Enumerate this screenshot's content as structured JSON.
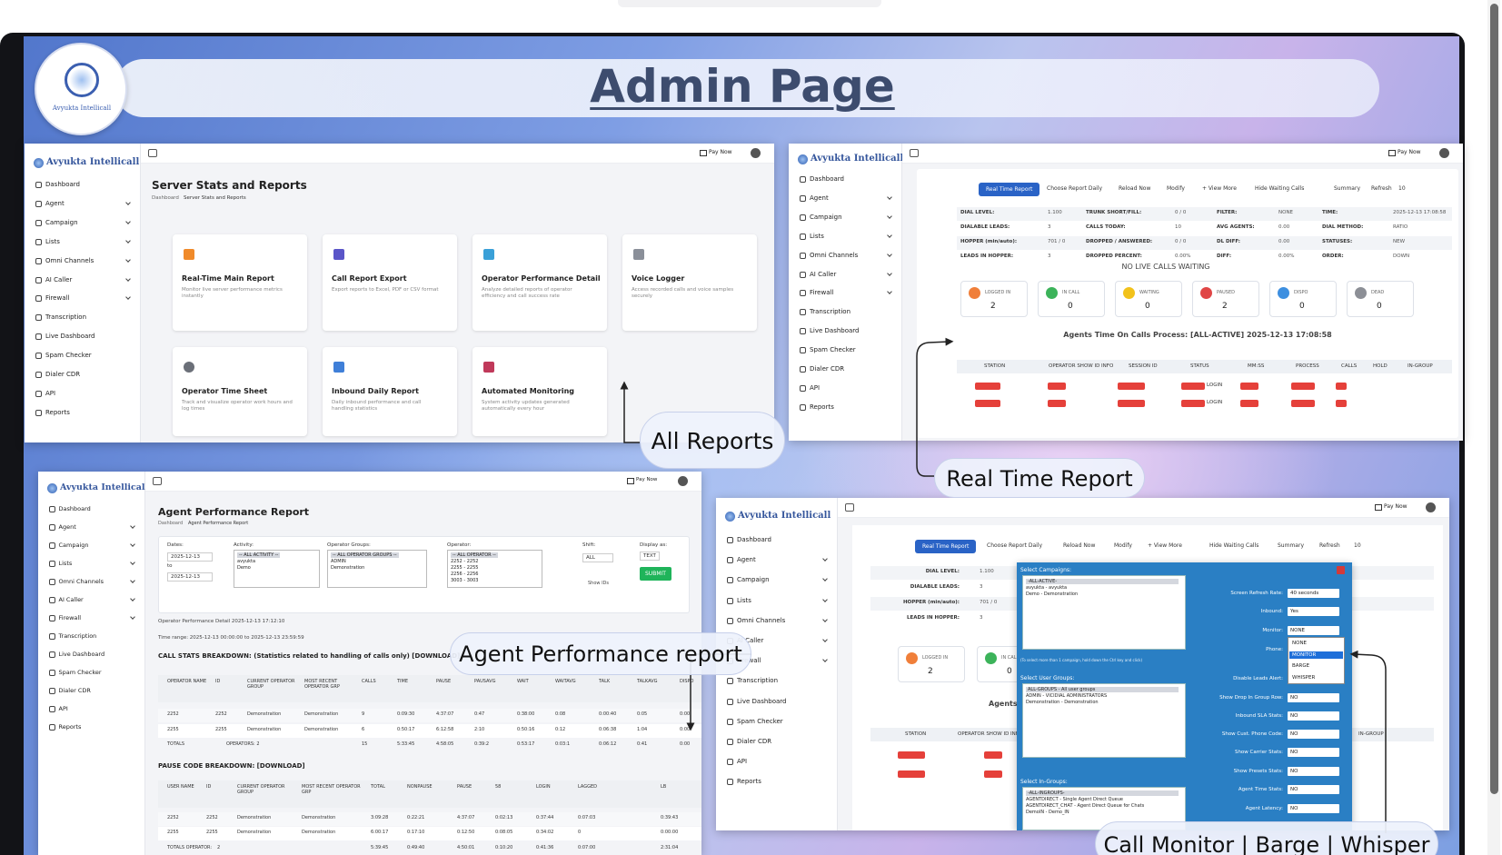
{
  "header": {
    "title": "Admin Page",
    "logo_text": "Avyukta Intellicall"
  },
  "callouts": [
    "All Reports",
    "Real Time Report",
    "Agent Performance report",
    "Call Monitor | Barge | Whisper"
  ],
  "sidebar": {
    "brand": "Avyukta Intellicall",
    "items": [
      "Dashboard",
      "Agent",
      "Campaign",
      "Lists",
      "Omni Channels",
      "AI Caller",
      "Firewall",
      "Transcription",
      "Live Dashboard",
      "Spam Checker",
      "Dialer CDR",
      "API",
      "Reports"
    ]
  },
  "topbar": {
    "pay_now": "Pay Now"
  },
  "reports_panel": {
    "title": "Server Stats and Reports",
    "breadcrumb": [
      "Dashboard",
      "Server Stats and Reports"
    ],
    "cards": [
      {
        "title": "Real-Time Main Report",
        "desc": "Monitor live server performance metrics instantly"
      },
      {
        "title": "Call Report Export",
        "desc": "Export reports to Excel, PDF or CSV format"
      },
      {
        "title": "Operator Performance Detail",
        "desc": "Analyze detailed reports of operator efficiency and call success rate"
      },
      {
        "title": "Voice Logger",
        "desc": "Access recorded calls and voice samples securely"
      },
      {
        "title": "Operator Time Sheet",
        "desc": "Track and visualize operator work hours and log times"
      },
      {
        "title": "Inbound Daily Report",
        "desc": "Daily inbound performance and call handling statistics"
      },
      {
        "title": "Automated Monitoring",
        "desc": "System activity updates generated automatically every hour"
      }
    ]
  },
  "realtime_panel": {
    "tabs": [
      "Real Time Report",
      "Choose Report Daily",
      "Reload Now",
      "Modify",
      "+ View More",
      "Hide Waiting Calls",
      "Summary",
      "Refresh",
      "10"
    ],
    "stats": [
      [
        {
          "label": "DIAL LEVEL:",
          "value": "1.100"
        },
        {
          "label": "TRUNK SHORT/FILL:",
          "value": "0 / 0"
        },
        {
          "label": "FILTER:",
          "value": "NONE"
        },
        {
          "label": "TIME:",
          "value": "2025-12-13 17:08:58"
        }
      ],
      [
        {
          "label": "DIALABLE LEADS:",
          "value": "3"
        },
        {
          "label": "CALLS TODAY:",
          "value": "10"
        },
        {
          "label": "AVG AGENTS:",
          "value": "0.00"
        },
        {
          "label": "DIAL METHOD:",
          "value": "RATIO"
        }
      ],
      [
        {
          "label": "HOPPER (min/auto):",
          "value": "701 / 0"
        },
        {
          "label": "DROPPED / ANSWERED:",
          "value": "0 / 0"
        },
        {
          "label": "DL DIFF:",
          "value": "0.00"
        },
        {
          "label": "STATUSES:",
          "value": "NEW"
        }
      ],
      [
        {
          "label": "LEADS IN HOPPER:",
          "value": "3"
        },
        {
          "label": "DROPPED PERCENT:",
          "value": "0.00%"
        },
        {
          "label": "DIFF:",
          "value": "0.00%"
        },
        {
          "label": "ORDER:",
          "value": "DOWN"
        }
      ]
    ],
    "no_calls": "NO LIVE CALLS WAITING",
    "statuses": [
      {
        "label": "LOGGED IN",
        "value": 2
      },
      {
        "label": "IN CALL",
        "value": 0
      },
      {
        "label": "WAITING",
        "value": 0
      },
      {
        "label": "PAUSED",
        "value": 2
      },
      {
        "label": "DISPO",
        "value": 0
      },
      {
        "label": "DEAD",
        "value": 0
      }
    ],
    "agents_title": "Agents Time On Calls Process: [ALL-ACTIVE]   2025-12-13 17:08:58",
    "table_headers": [
      "STATION",
      "OPERATOR SHOW ID INFO",
      "SESSION ID",
      "STATUS",
      "MM:SS",
      "PROCESS",
      "CALLS",
      "HOLD",
      "IN-GROUP"
    ],
    "login": "LOGIN"
  },
  "agent_panel": {
    "title": "Agent Performance Report",
    "breadcrumb": [
      "Dashboard",
      "Agent Performance Report"
    ],
    "filters": {
      "dates_label": "Dates:",
      "date_from": "2025-12-13",
      "to_label": "to",
      "date_to": "2025-12-13",
      "activity_label": "Activity:",
      "activity_options": [
        "-- ALL ACTIVITY --",
        "avyukta",
        "Demo"
      ],
      "groups_label": "Operator Groups:",
      "groups_options": [
        "-- ALL OPERATOR GROUPS --",
        "ADMIN",
        "Demonstration"
      ],
      "operator_label": "Operator:",
      "operator_options": [
        "-- ALL OPERATOR --",
        "2252 - 2252",
        "2255 - 2255",
        "2256 - 2256",
        "3003 - 3003"
      ],
      "shift_label": "Shift:",
      "shift_value": "ALL",
      "display_label": "Display as:",
      "display_value": "TEXT",
      "submit": "SUBMIT",
      "show_ids": "Show IDs"
    },
    "detail_line": "Operator Performance Detail     2025-12-13 17:12:10",
    "time_range": "Time range: 2025-12-13 00:00:00 to 2025-12-13 23:59:59",
    "call_stats_title": "CALL STATS BREAKDOWN: (Statistics related to handling of calls only) [DOWNLOAD]",
    "call_headers": [
      "OPERATOR NAME",
      "ID",
      "CURRENT OPERATOR GROUP",
      "MOST RECENT OPERATOR GRP",
      "CALLS",
      "TIME",
      "PAUSE",
      "PAUSAVG",
      "WAIT",
      "WAITAVG",
      "TALK",
      "TALKAVG",
      "DISPO"
    ],
    "call_rows": [
      [
        "2252",
        "2252",
        "Demonstration",
        "Demonstration",
        "9",
        "0:09:30",
        "4:37:07",
        "0:47",
        "0:38:00",
        "0:08",
        "0:00:40",
        "0:05",
        "0:00"
      ],
      [
        "2255",
        "2255",
        "Demonstration",
        "Demonstration",
        "6",
        "0:50:17",
        "6:12:58",
        "2:10",
        "0:50:16",
        "0:12",
        "0:06:38",
        "1:04",
        "0:00"
      ]
    ],
    "call_totals": {
      "label": "TOTALS",
      "operators": "OPERATORS: 2",
      "values": [
        "15",
        "5:33:45",
        "4:58:05",
        "0:39:2",
        "0:53:17",
        "0:03:1",
        "0:06:12",
        "0:41",
        "0:00"
      ]
    },
    "pause_title": "PAUSE CODE BREAKDOWN: [DOWNLOAD]",
    "pause_headers": [
      "USER NAME",
      "ID",
      "CURRENT OPERATOR GROUP",
      "MOST RECENT OPERATOR GRP",
      "TOTAL",
      "NONPAUSE",
      "PAUSE",
      "58",
      "LOGIN",
      "LAGGED",
      "LB"
    ],
    "pause_rows": [
      [
        "2252",
        "2252",
        "Demonstration",
        "Demonstration",
        "3:09:28",
        "0:22:21",
        "4:37:07",
        "0:02:13",
        "0:37:44",
        "0:07:03",
        "0:39:43"
      ],
      [
        "2255",
        "2255",
        "Demonstration",
        "Demonstration",
        "6:00:17",
        "0:17:10",
        "0:12:50",
        "0:08:05",
        "0:34:02",
        "0",
        "0:00:00"
      ]
    ],
    "pause_totals": {
      "label": "TOTALS OPERATOR:",
      "operators": "2",
      "values": [
        "5:39:45",
        "0:49:40",
        "4:50:01",
        "0:10:20",
        "0:41:36",
        "0:07:00",
        "2:31:04"
      ]
    }
  },
  "monitor_panel": {
    "campaigns_label": "Select Campaigns:",
    "campaigns": [
      "-ALL-ACTIVE-",
      "avyukta - avyukta",
      "Demo - Demonstration"
    ],
    "note": "(To select more than 1 campaign, hold down the Ctrl key and click)",
    "user_groups_label": "Select User Groups:",
    "user_groups": [
      "ALL-GROUPS - All user groups",
      "ADMIN - VICIDIAL ADMINISTRATORS",
      "Demonstration - Demonstration"
    ],
    "ingroups_label": "Select In-Groups:",
    "ingroups": [
      "-ALL-INGROUPS-",
      "AGENTDIRECT - Single Agent Direct Queue",
      "AGENTDIRECT_CHAT - Agent Direct Queue for Chats",
      "DemoIN - Demo_IN"
    ],
    "fields_top": [
      {
        "label": "Screen Refresh Rate:",
        "value": "40 seconds"
      },
      {
        "label": "Inbound:",
        "value": "Yes"
      },
      {
        "label": "Monitor:",
        "value": "NONE"
      }
    ],
    "phone_label": "Phone:",
    "monitor_options": [
      "NONE",
      "MONITOR",
      "BARGE",
      "WHISPER"
    ],
    "disable_leads_label": "Disable Leads Alert:",
    "fields_bottom": [
      {
        "label": "Show Drop In Group Row:",
        "value": "NO"
      },
      {
        "label": "Inbound SLA Stats:",
        "value": "NO"
      },
      {
        "label": "Show Cust. Phone Code:",
        "value": "NO"
      },
      {
        "label": "Show Carrier Stats:",
        "value": "NO"
      },
      {
        "label": "Show Presets Stats:",
        "value": "NO"
      },
      {
        "label": "Agent Time Stats:",
        "value": "NO"
      },
      {
        "label": "Agent Latency:",
        "value": "NO"
      }
    ]
  }
}
